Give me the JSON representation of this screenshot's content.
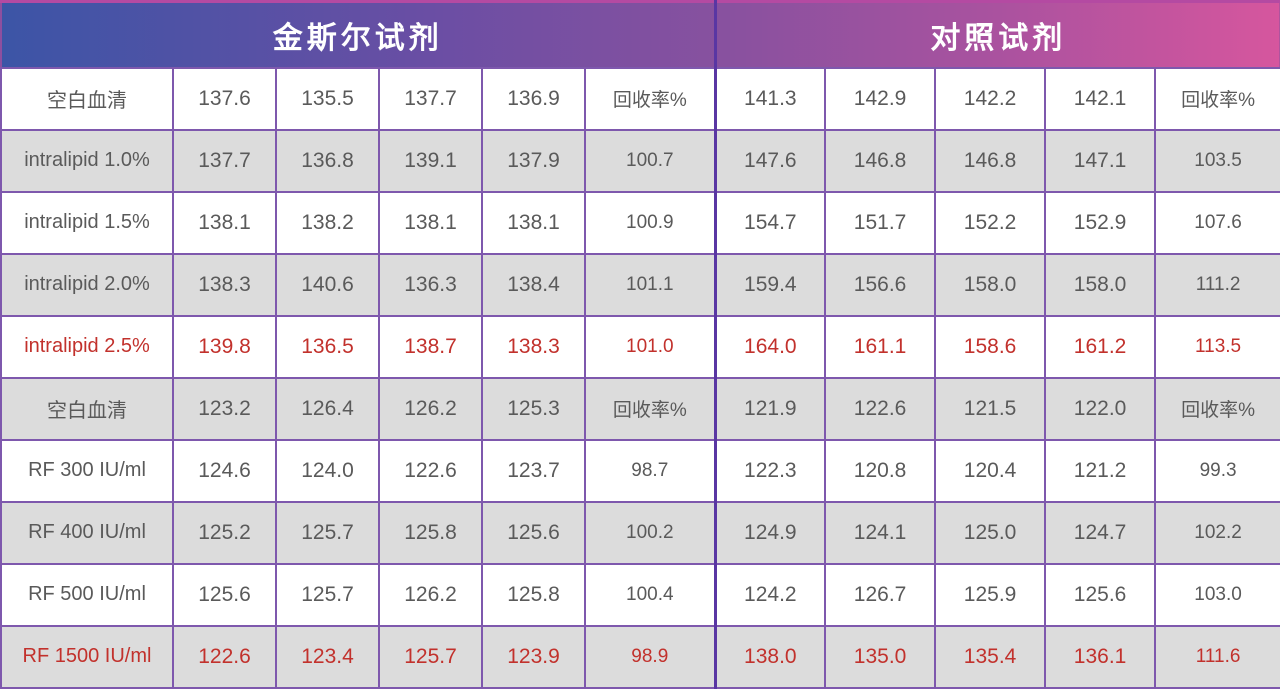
{
  "chart_data": {
    "type": "table",
    "title": "",
    "groups": [
      {
        "title": "金斯尔试剂",
        "span": 6
      },
      {
        "title": "对照试剂",
        "span": 5
      }
    ],
    "recovery_column_label": "回收率%",
    "rows": [
      {
        "label": "空白血清",
        "values": [
          "137.6",
          "135.5",
          "137.7",
          "136.9",
          "回收率%",
          "141.3",
          "142.9",
          "142.2",
          "142.1",
          "回收率%"
        ],
        "shaded": false,
        "highlight": false
      },
      {
        "label": "intralipid 1.0%",
        "values": [
          "137.7",
          "136.8",
          "139.1",
          "137.9",
          "100.7",
          "147.6",
          "146.8",
          "146.8",
          "147.1",
          "103.5"
        ],
        "shaded": true,
        "highlight": false
      },
      {
        "label": "intralipid 1.5%",
        "values": [
          "138.1",
          "138.2",
          "138.1",
          "138.1",
          "100.9",
          "154.7",
          "151.7",
          "152.2",
          "152.9",
          "107.6"
        ],
        "shaded": false,
        "highlight": false
      },
      {
        "label": "intralipid 2.0%",
        "values": [
          "138.3",
          "140.6",
          "136.3",
          "138.4",
          "101.1",
          "159.4",
          "156.6",
          "158.0",
          "158.0",
          "111.2"
        ],
        "shaded": true,
        "highlight": false
      },
      {
        "label": "intralipid 2.5%",
        "values": [
          "139.8",
          "136.5",
          "138.7",
          "138.3",
          "101.0",
          "164.0",
          "161.1",
          "158.6",
          "161.2",
          "113.5"
        ],
        "shaded": false,
        "highlight": true
      },
      {
        "label": "空白血清",
        "values": [
          "123.2",
          "126.4",
          "126.2",
          "125.3",
          "回收率%",
          "121.9",
          "122.6",
          "121.5",
          "122.0",
          "回收率%"
        ],
        "shaded": true,
        "highlight": false
      },
      {
        "label": "RF 300 IU/ml",
        "values": [
          "124.6",
          "124.0",
          "122.6",
          "123.7",
          "98.7",
          "122.3",
          "120.8",
          "120.4",
          "121.2",
          "99.3"
        ],
        "shaded": false,
        "highlight": false
      },
      {
        "label": "RF 400 IU/ml",
        "values": [
          "125.2",
          "125.7",
          "125.8",
          "125.6",
          "100.2",
          "124.9",
          "124.1",
          "125.0",
          "124.7",
          "102.2"
        ],
        "shaded": true,
        "highlight": false
      },
      {
        "label": "RF 500 IU/ml",
        "values": [
          "125.6",
          "125.7",
          "126.2",
          "125.8",
          "100.4",
          "124.2",
          "126.7",
          "125.9",
          "125.6",
          "103.0"
        ],
        "shaded": false,
        "highlight": false
      },
      {
        "label": "RF 1500 IU/ml",
        "values": [
          "122.6",
          "123.4",
          "125.7",
          "123.9",
          "98.9",
          "138.0",
          "135.0",
          "135.4",
          "136.1",
          "111.6"
        ],
        "shaded": true,
        "highlight": true
      }
    ]
  },
  "colors": {
    "header_gradient_left": "#3c55a6",
    "header_gradient_mid": "#87519f",
    "header_gradient_right": "#d6569e",
    "header_text": "#ffffff",
    "grid_border": "#7e58ad",
    "group_divider": "#5936a3",
    "shaded_row_bg": "#dcdcdc",
    "body_text": "#5a5a5a",
    "highlight_text": "#c2312c"
  }
}
